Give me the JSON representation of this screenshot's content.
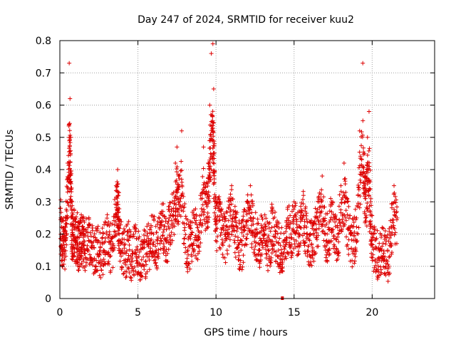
{
  "chart_data": {
    "type": "scatter",
    "title": "Day 247 of 2024, SRMTID for receiver kuu2",
    "xlabel": "GPS time / hours",
    "ylabel": "SRMTID / TECUs",
    "xlim": [
      0,
      24
    ],
    "ylim": [
      0,
      0.8
    ],
    "x_ticks": [
      0,
      5,
      10,
      15,
      20
    ],
    "x_tick_labels": [
      "0",
      "5",
      "10",
      "15",
      "20"
    ],
    "y_ticks": [
      0,
      0.1,
      0.2,
      0.3,
      0.4,
      0.5,
      0.6,
      0.7,
      0.8
    ],
    "y_tick_labels": [
      "0",
      "0.1",
      "0.2",
      "0.3",
      "0.4",
      "0.5",
      "0.6",
      "0.7",
      "0.8"
    ],
    "grid": true,
    "marker": "plus",
    "color": "#dd0000",
    "series": [
      {
        "name": "SRMTID",
        "x": [
          0.05,
          0.1,
          0.2,
          0.3,
          0.4,
          0.5,
          0.6,
          0.65,
          0.7,
          0.75,
          0.8,
          0.9,
          1.0,
          1.1,
          1.2,
          1.3,
          1.4,
          1.5,
          1.6,
          1.8,
          2.0,
          2.2,
          2.4,
          2.6,
          2.8,
          3.0,
          3.2,
          3.4,
          3.6,
          3.7,
          3.75,
          3.8,
          4.0,
          4.2,
          4.4,
          4.6,
          4.8,
          5.0,
          5.2,
          5.4,
          5.6,
          5.8,
          6.0,
          6.2,
          6.4,
          6.6,
          6.8,
          7.0,
          7.2,
          7.4,
          7.5,
          7.6,
          7.8,
          8.0,
          8.2,
          8.4,
          8.6,
          8.8,
          9.0,
          9.2,
          9.4,
          9.5,
          9.6,
          9.7,
          9.8,
          9.85,
          9.9,
          10.0,
          10.2,
          10.4,
          10.6,
          10.8,
          11.0,
          11.2,
          11.4,
          11.6,
          11.8,
          12.0,
          12.2,
          12.4,
          12.6,
          12.8,
          13.0,
          13.2,
          13.4,
          13.6,
          13.8,
          14.0,
          14.2,
          14.4,
          14.6,
          14.8,
          15.0,
          15.2,
          15.4,
          15.6,
          15.8,
          16.0,
          16.2,
          16.4,
          16.6,
          16.8,
          17.0,
          17.2,
          17.4,
          17.6,
          17.8,
          18.0,
          18.2,
          18.4,
          18.6,
          18.8,
          19.0,
          19.2,
          19.4,
          19.5,
          19.6,
          19.7,
          19.8,
          19.9,
          20.0,
          20.2,
          20.4,
          20.6,
          20.8,
          21.0,
          21.2,
          21.4,
          21.6
        ],
        "y": [
          0.28,
          0.15,
          0.2,
          0.12,
          0.25,
          0.42,
          0.73,
          0.62,
          0.5,
          0.3,
          0.2,
          0.24,
          0.18,
          0.22,
          0.15,
          0.2,
          0.17,
          0.19,
          0.14,
          0.22,
          0.16,
          0.12,
          0.18,
          0.1,
          0.15,
          0.2,
          0.13,
          0.17,
          0.35,
          0.4,
          0.32,
          0.2,
          0.15,
          0.12,
          0.18,
          0.1,
          0.14,
          0.11,
          0.08,
          0.1,
          0.13,
          0.18,
          0.2,
          0.15,
          0.22,
          0.27,
          0.18,
          0.25,
          0.3,
          0.42,
          0.47,
          0.38,
          0.52,
          0.22,
          0.15,
          0.2,
          0.25,
          0.18,
          0.32,
          0.47,
          0.36,
          0.42,
          0.6,
          0.76,
          0.79,
          0.65,
          0.48,
          0.25,
          0.3,
          0.22,
          0.2,
          0.28,
          0.35,
          0.25,
          0.18,
          0.15,
          0.22,
          0.3,
          0.35,
          0.25,
          0.2,
          0.15,
          0.22,
          0.18,
          0.15,
          0.28,
          0.2,
          0.15,
          0.12,
          0.18,
          0.25,
          0.2,
          0.3,
          0.22,
          0.25,
          0.32,
          0.2,
          0.18,
          0.15,
          0.25,
          0.3,
          0.38,
          0.2,
          0.22,
          0.3,
          0.25,
          0.2,
          0.35,
          0.42,
          0.3,
          0.2,
          0.18,
          0.25,
          0.52,
          0.73,
          0.45,
          0.38,
          0.5,
          0.58,
          0.3,
          0.2,
          0.12,
          0.1,
          0.15,
          0.12,
          0.08,
          0.2,
          0.35,
          0.25
        ]
      }
    ],
    "outlier_marker": {
      "x": 14.25,
      "y": 0
    }
  }
}
